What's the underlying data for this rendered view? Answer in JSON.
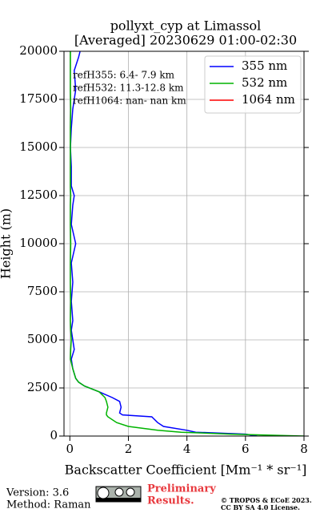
{
  "chart_data": {
    "type": "line",
    "title": "pollyxt_cyp at Limassol",
    "subtitle": "[Averaged] 20230629 01:00-02:30",
    "xlabel": "Backscatter Coefficient [Mm⁻¹ * sr⁻¹]",
    "ylabel": "Height (m)",
    "y": [
      0,
      100,
      200,
      300,
      500,
      700,
      1000,
      1100,
      1200,
      1500,
      1800,
      2000,
      2300,
      2600,
      2800,
      3000,
      3500,
      4000,
      4500,
      5000,
      5500,
      6000,
      7000,
      8000,
      9000,
      10000,
      11000,
      12000,
      12500,
      13000,
      14000,
      15000,
      16000,
      17000,
      18000,
      19000,
      19700,
      20000
    ],
    "series": [
      {
        "name": "355 nm",
        "color": "#0000ff",
        "values": [
          6.4,
          6.0,
          4.3,
          4.0,
          3.2,
          3.0,
          2.8,
          1.8,
          1.7,
          1.75,
          1.7,
          1.45,
          1.0,
          0.5,
          0.3,
          0.2,
          0.1,
          0.05,
          0.15,
          0.1,
          0.05,
          0.1,
          0.05,
          0.1,
          0.05,
          0.2,
          0.05,
          0.1,
          0.15,
          0.05,
          0.05,
          0.02,
          0.05,
          0.1,
          0.2,
          0.15,
          0.3,
          0.35
        ]
      },
      {
        "name": "532 nm",
        "color": "#00b400",
        "values": [
          8.0,
          5.5,
          3.8,
          3.0,
          2.0,
          1.6,
          1.3,
          1.25,
          1.25,
          1.3,
          1.25,
          1.2,
          1.0,
          0.5,
          0.3,
          0.2,
          0.1,
          0.02,
          0.03,
          0.05,
          0.03,
          0.02,
          0.03,
          0.02,
          0.02,
          0.03,
          0.02,
          0.02,
          0.03,
          0.02,
          0.02,
          0.02,
          0.02,
          0.03,
          0.02,
          0.02,
          0.02,
          0.02
        ]
      },
      {
        "name": "1064 nm",
        "color": "#ff0000",
        "values": [
          null,
          null,
          null,
          null,
          null,
          null,
          null,
          null,
          null,
          null,
          null,
          null,
          null,
          null,
          null,
          null,
          null,
          null,
          null,
          null,
          null,
          null,
          null,
          null,
          null,
          null,
          null,
          null,
          null,
          null,
          null,
          null,
          null,
          null,
          null,
          null,
          null,
          null
        ]
      }
    ],
    "xlim": [
      -0.2,
      8
    ],
    "xticks": [
      0,
      2,
      4,
      6,
      8
    ],
    "ylim": [
      0,
      20000
    ],
    "yticks": [
      0,
      2500,
      5000,
      7500,
      10000,
      12500,
      15000,
      17500,
      20000
    ],
    "grid": true,
    "legend": "upper right",
    "annotations": [
      "refH355:  6.4- 7.9 km",
      "refH532: 11.3-12.8 km",
      "refH1064:  nan- nan km"
    ]
  },
  "footer": {
    "version": "Version: 3.6",
    "method": "Method: Raman",
    "preliminary": [
      "Preliminary",
      "Results."
    ],
    "copyright": [
      "© TROPOS & ECoE 2023.",
      "CC BY SA 4.0 License."
    ]
  }
}
